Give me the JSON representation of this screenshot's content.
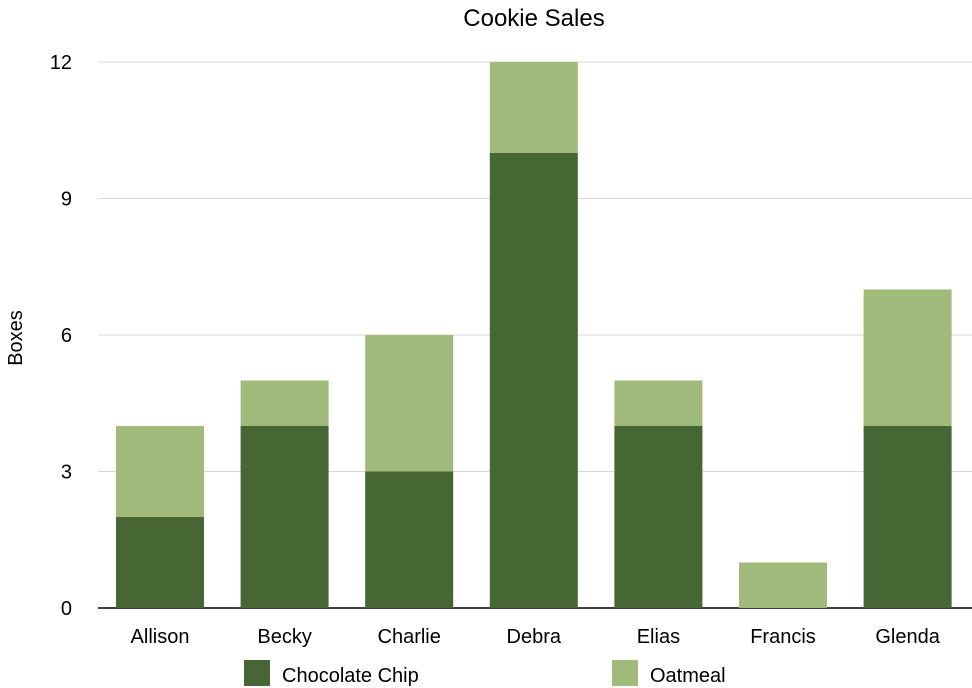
{
  "chart_data": {
    "type": "bar",
    "stacked": true,
    "title": "Cookie Sales",
    "ylabel": "Boxes",
    "xlabel": "",
    "categories": [
      "Allison",
      "Becky",
      "Charlie",
      "Debra",
      "Elias",
      "Francis",
      "Glenda"
    ],
    "series": [
      {
        "name": "Chocolate Chip",
        "values": [
          2,
          4,
          3,
          10,
          4,
          0,
          4
        ],
        "color": "#466633"
      },
      {
        "name": "Oatmeal",
        "values": [
          2,
          1,
          3,
          2,
          1,
          1,
          3
        ],
        "color": "#9FBA7A"
      }
    ],
    "ylim": [
      0,
      12
    ],
    "yticks": [
      0,
      3,
      6,
      9,
      12
    ],
    "grid": true,
    "legend_position": "bottom"
  },
  "colors": {
    "grid": "#d9d9d9",
    "axis": "#000000"
  }
}
